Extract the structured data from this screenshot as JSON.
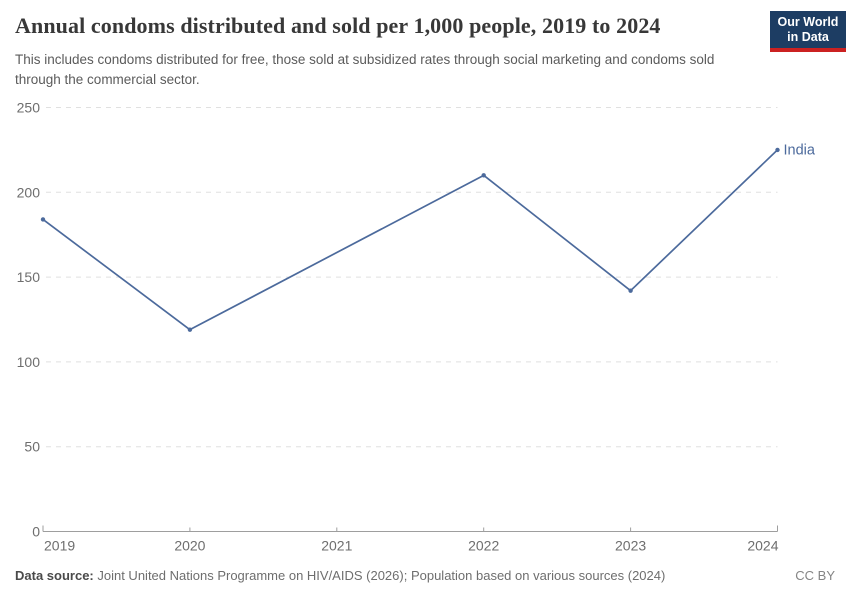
{
  "header": {
    "title": "Annual condoms distributed and sold per 1,000 people, 2019 to 2024",
    "subtitle": "This includes condoms distributed for free, those sold at subsidized rates through social marketing and condoms sold through the commercial sector.",
    "logo": {
      "line1": "Our World",
      "line2": "in Data",
      "bg_color": "#1d3d63",
      "accent_color": "#cb2121"
    }
  },
  "chart_data": {
    "type": "line",
    "title": "Annual condoms distributed and sold per 1,000 people, 2019 to 2024",
    "xlabel": "",
    "ylabel": "",
    "xlim": [
      2019,
      2024
    ],
    "ylim": [
      0,
      250
    ],
    "x_ticks": [
      2019,
      2020,
      2021,
      2022,
      2023,
      2024
    ],
    "y_ticks": [
      0,
      50,
      100,
      150,
      200,
      250
    ],
    "grid": "horizontal-dashed",
    "legend_position": "line-end",
    "series": [
      {
        "name": "India",
        "color": "#4C6A9C",
        "points": [
          [
            2019,
            184
          ],
          [
            2020,
            119
          ],
          [
            2022,
            210
          ],
          [
            2023,
            142
          ],
          [
            2024,
            225
          ]
        ]
      }
    ]
  },
  "style_colors": {
    "grid": "#e0e0e0",
    "axis": "#9e9e9e",
    "tick_label": "#6e6e6e",
    "line": "#4C6A9C"
  },
  "footer": {
    "source_label": "Data source:",
    "source_text": " Joint United Nations Programme on HIV/AIDS (2026); Population based on various sources (2024)",
    "license": "CC BY"
  }
}
